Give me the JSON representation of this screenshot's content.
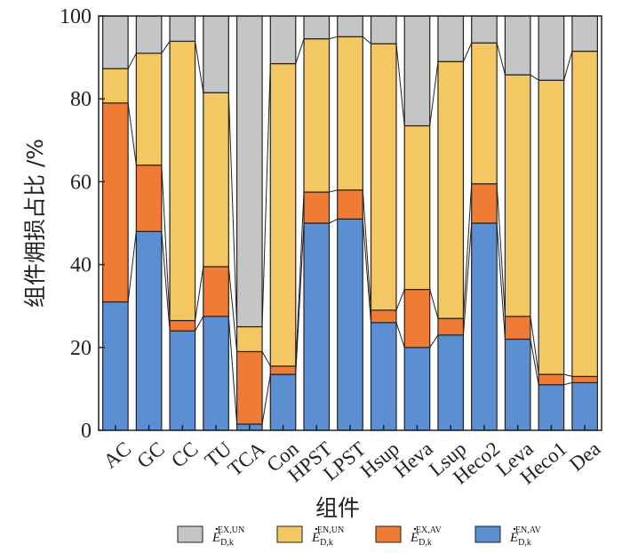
{
  "chart_data": {
    "type": "bar",
    "stacked": true,
    "categories": [
      "AC",
      "GC",
      "CC",
      "TU",
      "TCA",
      "Con",
      "HPST",
      "LPST",
      "Hsup",
      "Heva",
      "Lsup",
      "Heco2",
      "Leva",
      "Heco1",
      "Dea"
    ],
    "series": [
      {
        "name_main": "E",
        "name_sub": "D,k",
        "name_sup": "EN,AV",
        "color": "#5b8fd1",
        "values": [
          31,
          48,
          24,
          27.5,
          1.5,
          13.5,
          50,
          51,
          26,
          20,
          23,
          50,
          22,
          11,
          11.5
        ]
      },
      {
        "name_main": "E",
        "name_sub": "D,k",
        "name_sup": "EX,AV",
        "color": "#ef7b34",
        "values": [
          48,
          16,
          2.5,
          12,
          17.5,
          2,
          7.5,
          7,
          3,
          14,
          4,
          9.5,
          5.5,
          2.5,
          1.5
        ]
      },
      {
        "name_main": "E",
        "name_sub": "D,k",
        "name_sup": "EN,UN",
        "color": "#f3c862",
        "values": [
          8.3,
          27,
          67.4,
          42,
          6,
          73,
          37,
          37,
          64.3,
          39.5,
          62,
          34,
          58.3,
          71,
          78.5
        ]
      },
      {
        "name_main": "E",
        "name_sub": "D,k",
        "name_sup": "EX,UN",
        "color": "#c5c5c7",
        "values": [
          12.7,
          9,
          6.1,
          18.5,
          75,
          11.5,
          5.5,
          5,
          6.7,
          26.5,
          11,
          6.5,
          14.2,
          15.5,
          8.5
        ]
      }
    ],
    "legend_order": [
      3,
      2,
      1,
      0
    ],
    "xlabel": "组件",
    "ylabel": "组件㶲损占比 /%",
    "ylim": [
      0,
      100
    ],
    "yticks": [
      "0",
      "20",
      "40",
      "60",
      "80",
      "100"
    ],
    "grid": false,
    "legend_position": "bottom"
  }
}
